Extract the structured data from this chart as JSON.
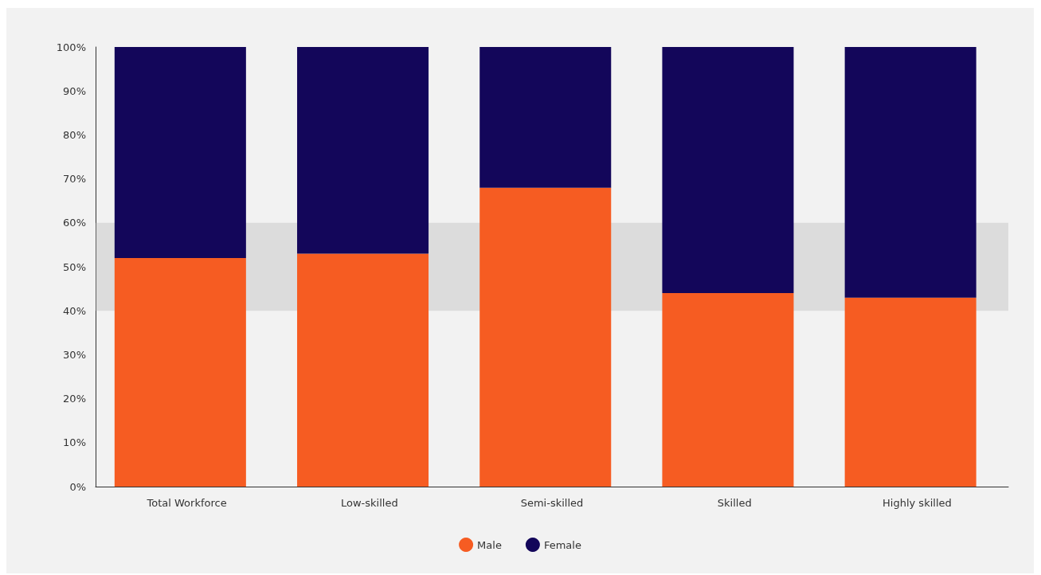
{
  "chart_data": {
    "type": "bar",
    "stacked": true,
    "categories": [
      "Total Workforce",
      "Low-skilled",
      "Semi-skilled",
      "Skilled",
      "Highly skilled"
    ],
    "series": [
      {
        "name": "Male",
        "color": "#f65c22",
        "values": [
          52,
          53,
          68,
          44,
          43
        ]
      },
      {
        "name": "Female",
        "color": "#13065a",
        "values": [
          48,
          47,
          32,
          56,
          57
        ]
      }
    ],
    "ylim": [
      0,
      100
    ],
    "yticks": [
      {
        "value": 0,
        "label": "0%"
      },
      {
        "value": 10,
        "label": "10%"
      },
      {
        "value": 20,
        "label": "20%"
      },
      {
        "value": 30,
        "label": "30%"
      },
      {
        "value": 40,
        "label": "40%"
      },
      {
        "value": 50,
        "label": "50%"
      },
      {
        "value": 60,
        "label": "60%"
      },
      {
        "value": 70,
        "label": "70%"
      },
      {
        "value": 80,
        "label": "80%"
      },
      {
        "value": 90,
        "label": "90%"
      },
      {
        "value": 100,
        "label": "100%"
      }
    ],
    "bands": [
      {
        "axis": "y",
        "from": 40,
        "to": 60,
        "label": null,
        "color": "#b4b4b4"
      }
    ],
    "grid": false,
    "legend": "bottom"
  }
}
